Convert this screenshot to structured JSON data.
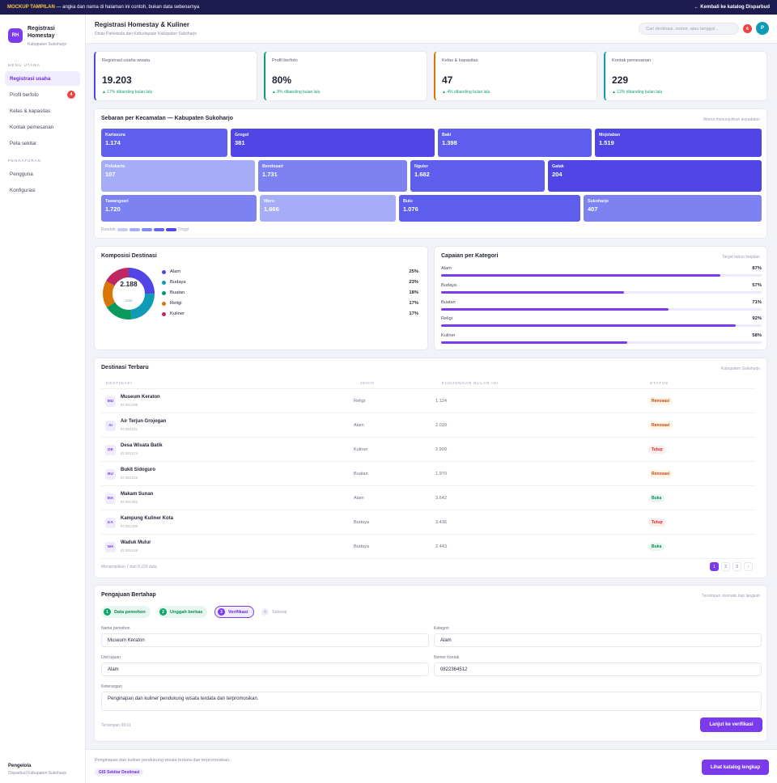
{
  "banner": {
    "mock_label": "MOCKUP TAMPILAN",
    "note": "— angka dan nama di halaman ini contoh, bukan data sebenarnya",
    "back_link": "← Kembali ke katalog Disparbud"
  },
  "sidebar": {
    "logo": "RH",
    "title_line1": "Registrasi",
    "title_line2": "Homestay",
    "subtitle": "Kabupaten Sukoharjo",
    "section_main": "MENU UTAMA",
    "items": [
      {
        "label": "Registrasi usaha"
      },
      {
        "label": "Profil berfoto",
        "badge": "4"
      },
      {
        "label": "Kelas & kapasitas"
      },
      {
        "label": "Kontak pemesanan"
      },
      {
        "label": "Peta sekitar"
      }
    ],
    "section_settings": "PENGATURAN",
    "settings_items": [
      {
        "label": "Pengguna"
      },
      {
        "label": "Konfigurasi"
      }
    ],
    "footer_role": "Pengelola",
    "footer_org": "Disparbud Kabupaten Sukoharjo"
  },
  "header": {
    "title": "Registrasi Homestay & Kuliner",
    "subtitle": "Dinas Pariwisata dan Kebudayaan Kabupaten Sukoharjo",
    "search_placeholder": "Cari destinasi, nomor, atau tanggal...",
    "notif_count": "6",
    "avatar": "P"
  },
  "kpis": [
    {
      "label": "Registrasi usaha wisata",
      "value": "19.203",
      "delta": "▲ 17% dibanding bulan lalu",
      "color": "#4f46e5"
    },
    {
      "label": "Profil berfoto",
      "value": "80%",
      "delta": "▲ 8% dibanding bulan lalu",
      "color": "#0a9a77"
    },
    {
      "label": "Kelas & kapasitas",
      "value": "47",
      "delta": "▲ 4% dibanding bulan lalu",
      "color": "#d97706"
    },
    {
      "label": "Kontak pemesanan",
      "value": "229",
      "delta": "▲ 13% dibanding bulan lalu",
      "color": "#0f9bb5"
    }
  ],
  "treemap": {
    "title": "Sebaran per Kecamatan — Kabupaten Sukoharjo",
    "note": "Warna menunjukkan kepadatan",
    "legend_low": "Rendah",
    "legend_high": "Tinggi",
    "legend_colors": [
      "#c7cbfb",
      "#a5adf8",
      "#8189f4",
      "#6366f1",
      "#4f46e5"
    ],
    "cells": [
      {
        "name": "Kartasura",
        "value": "1.174",
        "color": "#5f60ee"
      },
      {
        "name": "Grogol",
        "value": "381",
        "color": "#4f46e5"
      },
      {
        "name": "Baki",
        "value": "1.398",
        "color": "#5d5eee"
      },
      {
        "name": "Mojolaban",
        "value": "1.519",
        "color": "#4f46e5"
      },
      {
        "name": "Polokarto",
        "value": "107",
        "color": "#a5adf8"
      },
      {
        "name": "Bendosari",
        "value": "1.731",
        "color": "#7c82f2"
      },
      {
        "name": "Nguter",
        "value": "1.682",
        "color": "#5e5fee"
      },
      {
        "name": "Gatak",
        "value": "204",
        "color": "#4f46e5"
      },
      {
        "name": "Tawangsari",
        "value": "1.720",
        "color": "#7c82f2"
      },
      {
        "name": "Weru",
        "value": "1.666",
        "color": "#a5adf8"
      },
      {
        "name": "Bulu",
        "value": "1.076",
        "color": "#5d5eee"
      },
      {
        "name": "Sukoharjo",
        "value": "407",
        "color": "#7c82f2"
      }
    ]
  },
  "composition": {
    "title": "Komposisi Destinasi",
    "total": "2.188",
    "total_label": "total",
    "items": [
      {
        "label": "Alam",
        "pct": "25%",
        "value": 25,
        "color": "#4f46e5"
      },
      {
        "label": "Budaya",
        "pct": "23%",
        "value": 23,
        "color": "#0f9bb5"
      },
      {
        "label": "Buatan",
        "pct": "18%",
        "value": 18,
        "color": "#0a9a5e"
      },
      {
        "label": "Religi",
        "pct": "17%",
        "value": 17,
        "color": "#d97706"
      },
      {
        "label": "Kuliner",
        "pct": "17%",
        "value": 17,
        "color": "#c0265f"
      }
    ]
  },
  "achievement": {
    "title": "Capaian per Kategori",
    "note": "Target tahun berjalan",
    "items": [
      {
        "label": "Alam",
        "pct": "87%",
        "value": 0.87
      },
      {
        "label": "Budaya",
        "pct": "57%",
        "value": 0.57
      },
      {
        "label": "Buatan",
        "pct": "71%",
        "value": 0.71
      },
      {
        "label": "Religi",
        "pct": "92%",
        "value": 0.92
      },
      {
        "label": "Kuliner",
        "pct": "58%",
        "value": 0.58
      }
    ]
  },
  "table": {
    "title": "Destinasi Terbaru",
    "note": "Kabupaten Sukoharjo",
    "columns": [
      "DESTINASI",
      "JENIS",
      "KUNJUNGAN BULAN INI",
      "STATUS"
    ],
    "rows": [
      {
        "initials": "MU",
        "name": "Museum Keraton",
        "id": "ID 001206",
        "type": "Religi",
        "visits": "1.124",
        "status": "Renovasi",
        "kind": "ren"
      },
      {
        "initials": "AI",
        "name": "Air Terjun Grojogan",
        "id": "ID 001241",
        "type": "Alam",
        "visits": "2.029",
        "status": "Renovasi",
        "kind": "ren"
      },
      {
        "initials": "DE",
        "name": "Desa Wisata Batik",
        "id": "ID 001274",
        "type": "Kuliner",
        "visits": "2.909",
        "status": "Tutup",
        "kind": "tut"
      },
      {
        "initials": "BU",
        "name": "Bukit Sidoguro",
        "id": "ID 001315",
        "type": "Buatan",
        "visits": "1.970",
        "status": "Renovasi",
        "kind": "ren"
      },
      {
        "initials": "MA",
        "name": "Makam Sunan",
        "id": "ID 001352",
        "type": "Alam",
        "visits": "3.642",
        "status": "Buka",
        "kind": "buk"
      },
      {
        "initials": "KA",
        "name": "Kampung Kuliner Kota",
        "id": "ID 001389",
        "type": "Budaya",
        "visits": "3.436",
        "status": "Tutup",
        "kind": "tut"
      },
      {
        "initials": "WA",
        "name": "Waduk Mulur",
        "id": "ID 001426",
        "type": "Budaya",
        "visits": "2.443",
        "status": "Buka",
        "kind": "buk"
      }
    ],
    "footer": "Menampilkan 7 dari 8.229 data",
    "pages": [
      "1",
      "2",
      "3",
      "›"
    ]
  },
  "form": {
    "title": "Pengajuan Bertahap",
    "note": "Tersimpan otomatis tiap langkah",
    "steps": [
      {
        "num": "1",
        "label": "Data pemohon"
      },
      {
        "num": "2",
        "label": "Unggah berkas"
      },
      {
        "num": "3",
        "label": "Verifikasi"
      },
      {
        "num": "4",
        "label": "Selesai"
      }
    ],
    "name_label": "Nama pemohon",
    "name_value": "Museum Keraton",
    "category_label": "Kategori",
    "category_value": "Alam",
    "unit_label": "Unit tujuan",
    "unit_value": "Alam",
    "phone_label": "Nomor kontak",
    "phone_value": "0822364512",
    "notes_label": "Keterangan",
    "notes_value": "Penginapan dan kuliner pendukung wisata terdata dan terpromosikan.",
    "saved": "Tersimpan 09:01",
    "submit": "Lanjut ke verifikasi"
  },
  "footer": {
    "text": "Penginapan dan kuliner pendukung wisata terdata dan terpromosikan.",
    "tag": "GIS Sekitar Destinasi",
    "button": "Lihat katalog lengkap"
  }
}
